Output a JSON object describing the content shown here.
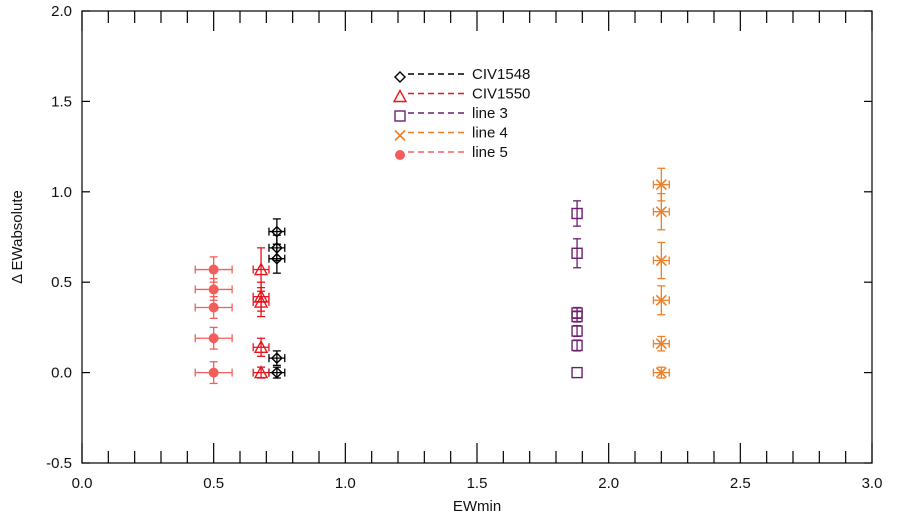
{
  "chart_data": {
    "type": "scatter",
    "title": "",
    "xlabel": "EWmin",
    "ylabel": "Δ EWabsolute",
    "xlim": [
      0.0,
      3.0
    ],
    "ylim": [
      -0.5,
      2.0
    ],
    "xticks": [
      0.0,
      0.5,
      1.0,
      1.5,
      2.0,
      2.5,
      3.0
    ],
    "xtick_labels": [
      "0.0",
      "0.5",
      "1.0",
      "1.5",
      "2.0",
      "2.5",
      "3.0"
    ],
    "yticks": [
      -0.5,
      0.0,
      0.5,
      1.0,
      1.5,
      2.0
    ],
    "ytick_labels": [
      "-0.5",
      "0.0",
      "0.5",
      "1.0",
      "1.5",
      "2.0"
    ],
    "x_minor_step": 0.1,
    "grid": false,
    "legend_position": "top-center",
    "series": [
      {
        "name": "CIV1548",
        "color": "#000000",
        "marker": "diamond",
        "dash": "6,4",
        "points": [
          {
            "x": 0.74,
            "y": 0.0,
            "xerr": 0.03,
            "yerr": 0.03
          },
          {
            "x": 0.74,
            "y": 0.08,
            "xerr": 0.03,
            "yerr": 0.04
          },
          {
            "x": 0.74,
            "y": 0.63,
            "xerr": 0.03,
            "yerr": 0.08
          },
          {
            "x": 0.74,
            "y": 0.69,
            "xerr": 0.03,
            "yerr": 0.07
          },
          {
            "x": 0.74,
            "y": 0.78,
            "xerr": 0.03,
            "yerr": 0.07
          }
        ]
      },
      {
        "name": "CIV1550",
        "color": "#e8141c",
        "marker": "triangle",
        "dash": "6,4",
        "points": [
          {
            "x": 0.68,
            "y": 0.0,
            "xerr": 0.03,
            "yerr": 0.03
          },
          {
            "x": 0.68,
            "y": 0.14,
            "xerr": 0.03,
            "yerr": 0.05
          },
          {
            "x": 0.68,
            "y": 0.39,
            "xerr": 0.03,
            "yerr": 0.08
          },
          {
            "x": 0.68,
            "y": 0.42,
            "xerr": 0.03,
            "yerr": 0.08
          },
          {
            "x": 0.68,
            "y": 0.57,
            "xerr": 0.03,
            "yerr": 0.12
          }
        ]
      },
      {
        "name": "line 3",
        "color": "#6b1f6e",
        "marker": "square",
        "dash": "6,4",
        "points": [
          {
            "x": 1.88,
            "y": 0.0,
            "xerr": 0.0,
            "yerr": 0.0
          },
          {
            "x": 1.88,
            "y": 0.15,
            "xerr": 0.0,
            "yerr": 0.03
          },
          {
            "x": 1.88,
            "y": 0.23,
            "xerr": 0.0,
            "yerr": 0.03
          },
          {
            "x": 1.88,
            "y": 0.31,
            "xerr": 0.0,
            "yerr": 0.03
          },
          {
            "x": 1.88,
            "y": 0.33,
            "xerr": 0.0,
            "yerr": 0.03
          },
          {
            "x": 1.88,
            "y": 0.66,
            "xerr": 0.0,
            "yerr": 0.08
          },
          {
            "x": 1.88,
            "y": 0.88,
            "xerr": 0.0,
            "yerr": 0.07
          }
        ]
      },
      {
        "name": "line 4",
        "color": "#f07f25",
        "marker": "x",
        "dash": "6,4",
        "points": [
          {
            "x": 2.2,
            "y": 0.0,
            "xerr": 0.03,
            "yerr": 0.03
          },
          {
            "x": 2.2,
            "y": 0.16,
            "xerr": 0.03,
            "yerr": 0.04
          },
          {
            "x": 2.2,
            "y": 0.4,
            "xerr": 0.03,
            "yerr": 0.08
          },
          {
            "x": 2.2,
            "y": 0.62,
            "xerr": 0.03,
            "yerr": 0.1
          },
          {
            "x": 2.2,
            "y": 0.89,
            "xerr": 0.03,
            "yerr": 0.1
          },
          {
            "x": 2.2,
            "y": 1.04,
            "xerr": 0.03,
            "yerr": 0.09
          }
        ]
      },
      {
        "name": "line 5",
        "color": "#f45e5a",
        "marker": "circle",
        "dash": "6,4",
        "points": [
          {
            "x": 0.5,
            "y": 0.0,
            "xerr": 0.07,
            "yerr": 0.06
          },
          {
            "x": 0.5,
            "y": 0.19,
            "xerr": 0.07,
            "yerr": 0.06
          },
          {
            "x": 0.5,
            "y": 0.36,
            "xerr": 0.07,
            "yerr": 0.06
          },
          {
            "x": 0.5,
            "y": 0.46,
            "xerr": 0.07,
            "yerr": 0.06
          },
          {
            "x": 0.5,
            "y": 0.57,
            "xerr": 0.07,
            "yerr": 0.07
          }
        ]
      }
    ]
  }
}
